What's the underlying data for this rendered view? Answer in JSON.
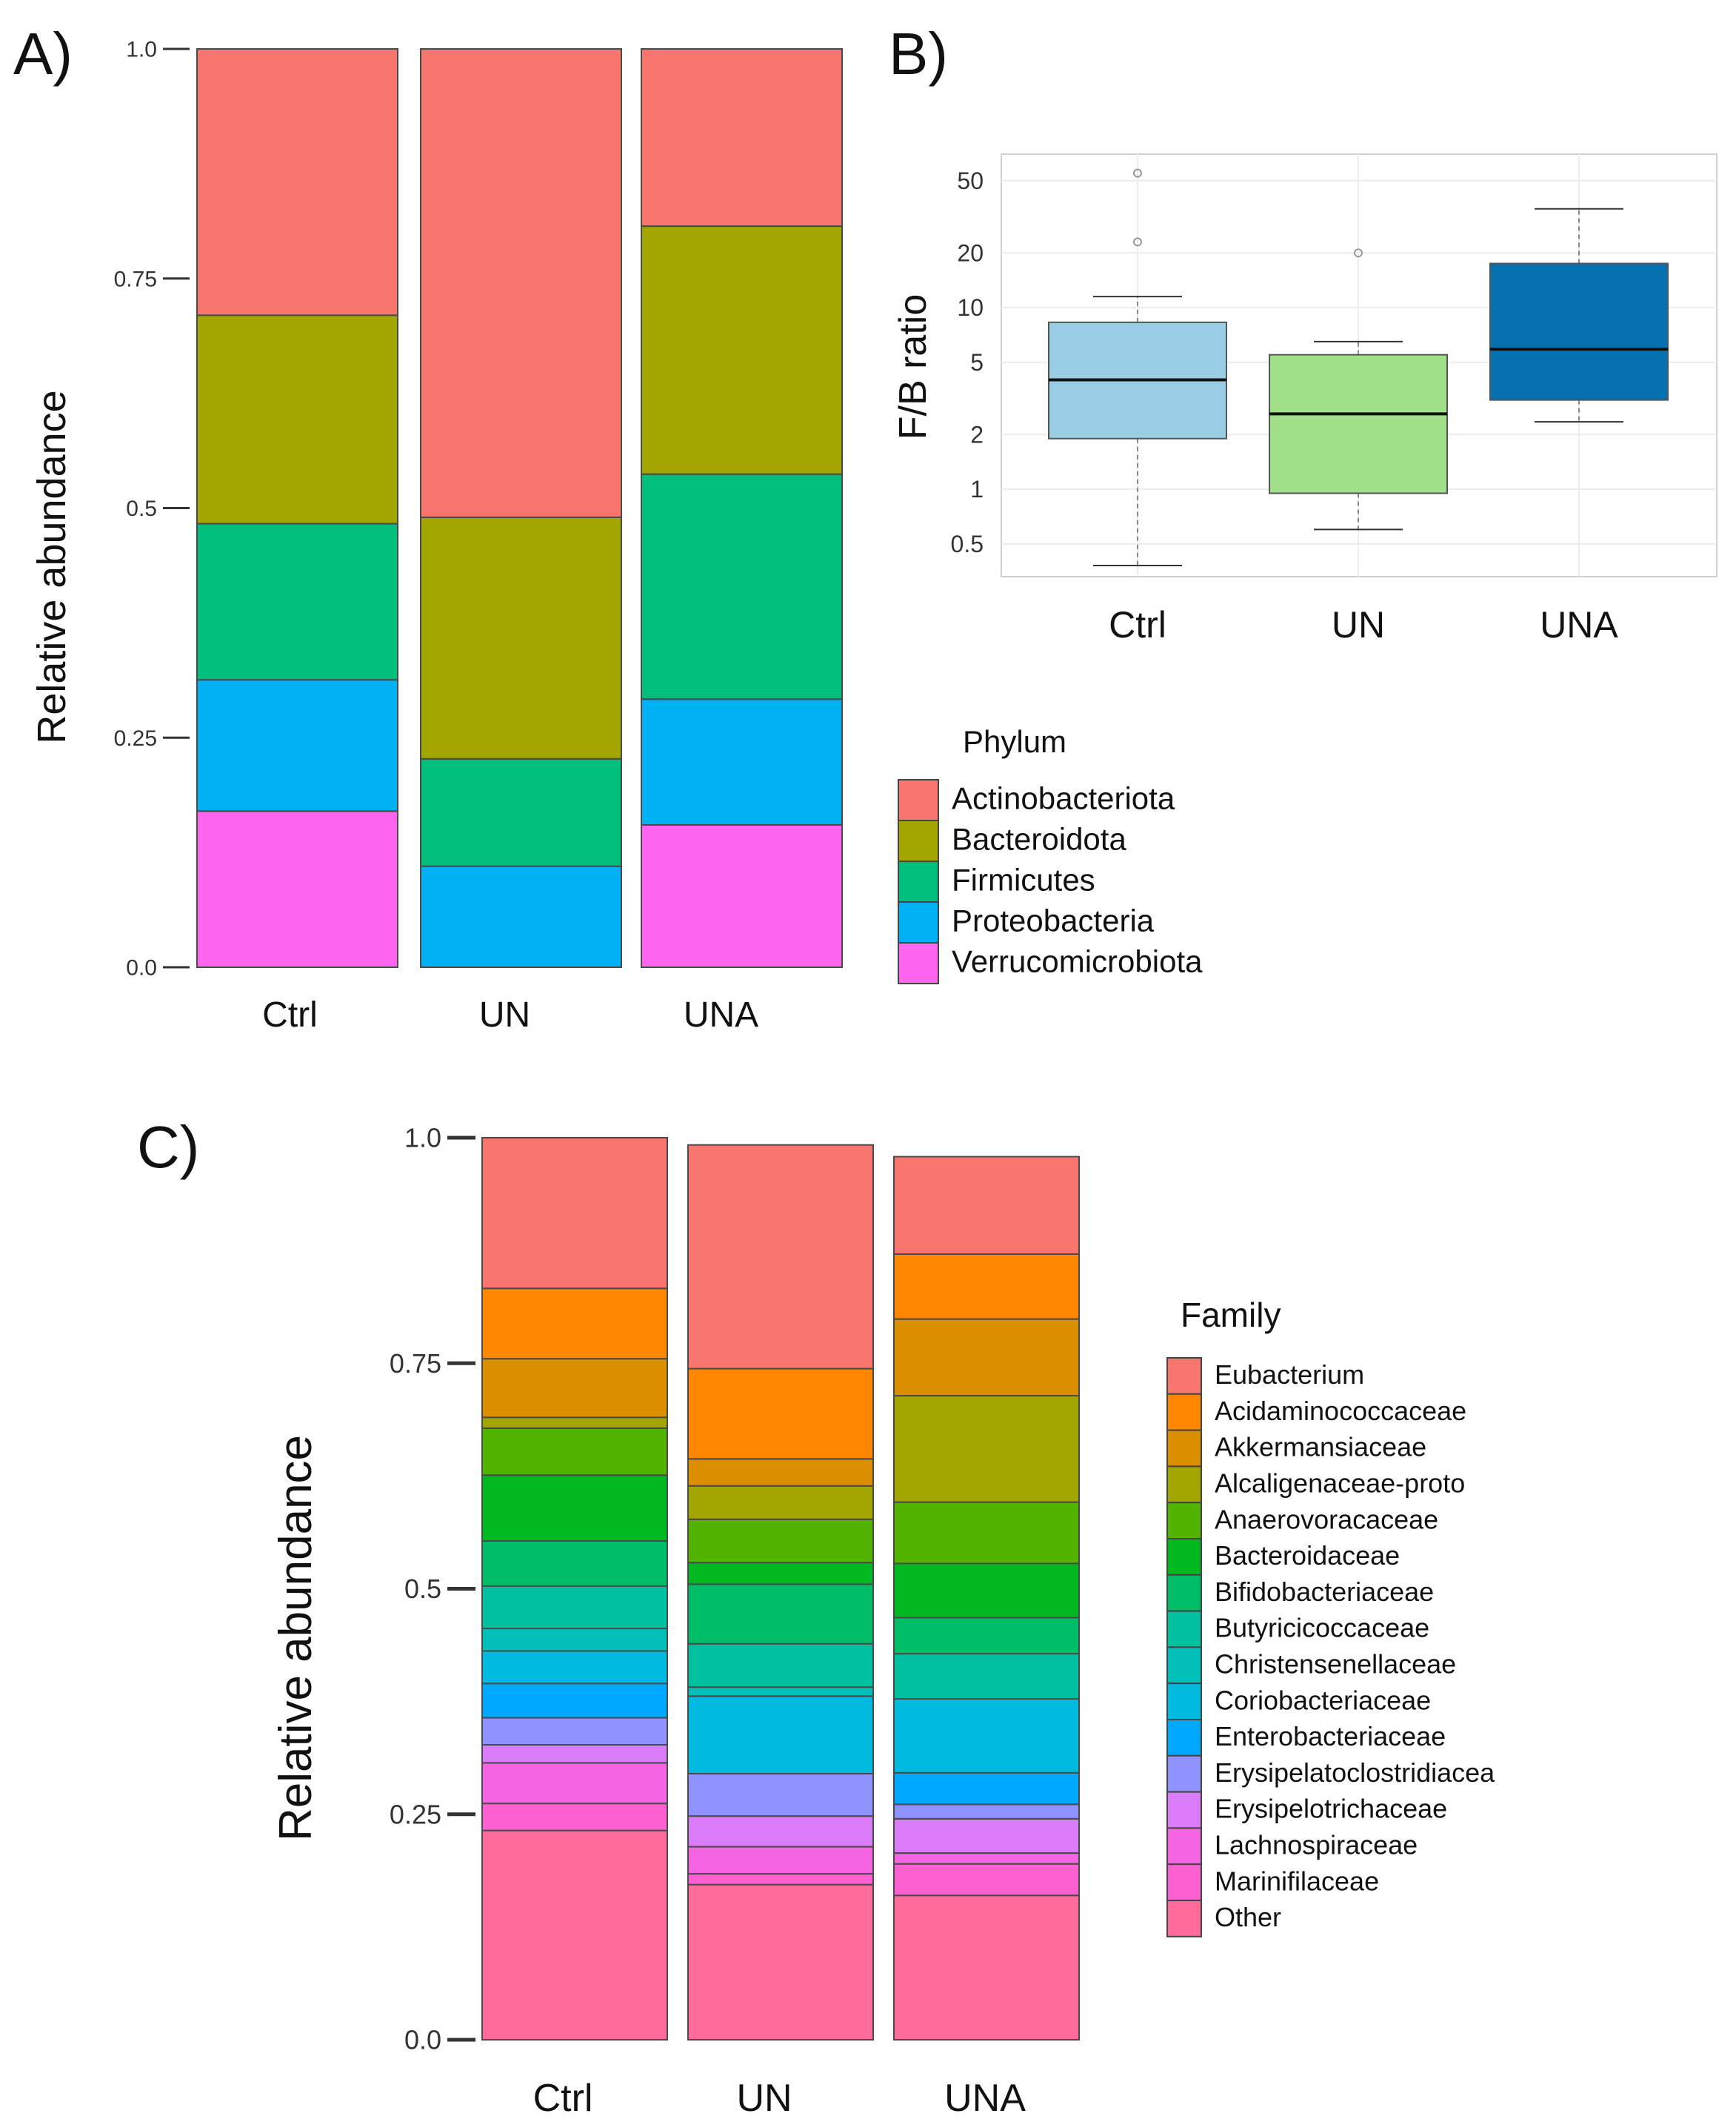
{
  "panels": {
    "a_label": "A)",
    "b_label": "B)",
    "c_label": "C)"
  },
  "chart_data": [
    {
      "id": "A",
      "type": "bar",
      "stacked": true,
      "xlabel": "",
      "ylabel": "Relative abundance",
      "ylim": [
        0,
        1
      ],
      "yticks": [
        0,
        0.25,
        0.5,
        0.75,
        1
      ],
      "ytick_labels": [
        "0.0",
        "0.25",
        "0.5",
        "0.75",
        "1.0"
      ],
      "categories": [
        "Ctrl",
        "UN",
        "UNA"
      ],
      "legend_title": "Phylum",
      "legend_placement": "right",
      "series": [
        {
          "name": "Verrucomicrobiota",
          "color": "#ff66f0",
          "values": [
            0.17,
            0.0,
            0.155
          ]
        },
        {
          "name": "Proteobacteria",
          "color": "#00b1f4",
          "values": [
            0.143,
            0.11,
            0.137
          ]
        },
        {
          "name": "Firmicutes",
          "color": "#00bf7d",
          "values": [
            0.17,
            0.117,
            0.245
          ]
        },
        {
          "name": "Bacteroidota",
          "color": "#a3a500",
          "values": [
            0.227,
            0.263,
            0.27
          ]
        },
        {
          "name": "Actinobacteriota",
          "color": "#f8766d",
          "values": [
            0.29,
            0.51,
            0.193
          ]
        }
      ]
    },
    {
      "id": "B",
      "type": "box",
      "ylabel": "F/B ratio",
      "yscale": "log",
      "ylim": [
        0.33,
        70
      ],
      "yticks": [
        0.5,
        1,
        2,
        5,
        10,
        20,
        50
      ],
      "ytick_labels": [
        "0.5",
        "1",
        "2",
        "5",
        "10",
        "20",
        "50"
      ],
      "categories": [
        "Ctrl",
        "UN",
        "UNA"
      ],
      "boxes": [
        {
          "name": "Ctrl",
          "color": "#99cde6",
          "whisker_low": 0.38,
          "q1": 1.9,
          "median": 4.0,
          "q3": 8.3,
          "whisker_high": 11.5,
          "outliers": [
            23,
            55
          ]
        },
        {
          "name": "UN",
          "color": "#9fe088",
          "whisker_low": 0.6,
          "q1": 0.95,
          "median": 2.6,
          "q3": 5.5,
          "whisker_high": 6.5,
          "outliers": [
            20
          ]
        },
        {
          "name": "UNA",
          "color": "#0571b0",
          "whisker_low": 2.35,
          "q1": 3.1,
          "median": 5.9,
          "q3": 17.5,
          "whisker_high": 35,
          "outliers": []
        }
      ]
    },
    {
      "id": "C",
      "type": "bar",
      "stacked": true,
      "xlabel": "",
      "ylabel": "Relative abundance",
      "ylim": [
        0,
        1
      ],
      "yticks": [
        0,
        0.25,
        0.5,
        0.75,
        1
      ],
      "ytick_labels": [
        "0.0",
        "0.25",
        "0.5",
        "0.75",
        "1.0"
      ],
      "categories": [
        "Ctrl",
        "UN",
        "UNA"
      ],
      "legend_title": "Family",
      "legend_placement": "right",
      "series": [
        {
          "name": "Other",
          "color": "#ff6c9c",
          "values": [
            0.232,
            0.172,
            0.16
          ]
        },
        {
          "name": "Marinifilaceae",
          "color": "#fd61d1",
          "values": [
            0.03,
            0.012,
            0.035
          ]
        },
        {
          "name": "Lachnospiraceae",
          "color": "#f564e3",
          "values": [
            0.045,
            0.03,
            0.012
          ]
        },
        {
          "name": "Erysipelotrichaceae",
          "color": "#da7bf8",
          "values": [
            0.02,
            0.034,
            0.038
          ]
        },
        {
          "name": "Erysipelatoclostridiacea",
          "color": "#8e93ff",
          "values": [
            0.03,
            0.047,
            0.016
          ]
        },
        {
          "name": "Enterobacteriaceae",
          "color": "#00a9ff",
          "values": [
            0.038,
            0.0,
            0.035
          ]
        },
        {
          "name": "Coriobacteriaceae",
          "color": "#00bae0",
          "values": [
            0.036,
            0.086,
            0.082
          ]
        },
        {
          "name": "Christensenellaceae",
          "color": "#00c0b8",
          "values": [
            0.025,
            0.01,
            0.0
          ]
        },
        {
          "name": "Butyricicoccaceae",
          "color": "#00c19f",
          "values": [
            0.047,
            0.048,
            0.05
          ]
        },
        {
          "name": "Bifidobacteriaceae",
          "color": "#00be67",
          "values": [
            0.05,
            0.066,
            0.04
          ]
        },
        {
          "name": "Bacteroidaceae",
          "color": "#00b81f",
          "values": [
            0.073,
            0.024,
            0.06
          ]
        },
        {
          "name": "Anaerovoracaceae",
          "color": "#53b400",
          "values": [
            0.052,
            0.048,
            0.068
          ]
        },
        {
          "name": "Alcaligenaceae-proto",
          "color": "#a3a500",
          "values": [
            0.012,
            0.037,
            0.118
          ]
        },
        {
          "name": "Akkermansiaceae",
          "color": "#db8e00",
          "values": [
            0.065,
            0.03,
            0.085
          ]
        },
        {
          "name": "Acidaminococcaceae",
          "color": "#ff8600",
          "values": [
            0.078,
            0.1,
            0.072
          ]
        },
        {
          "name": "Eubacterium",
          "color": "#f8766d",
          "values": [
            0.167,
            0.248,
            0.108
          ]
        }
      ]
    }
  ]
}
